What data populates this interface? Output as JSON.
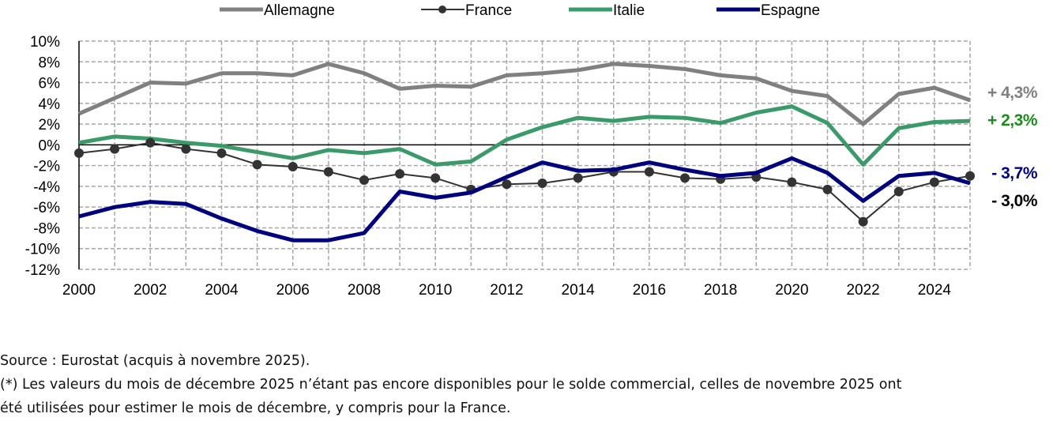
{
  "chart_data": {
    "type": "line",
    "title": "",
    "xlabel": "",
    "ylabel": "",
    "ylim": [
      -12,
      10
    ],
    "xlim": [
      2000,
      2025
    ],
    "yticks": [
      "10%",
      "8%",
      "6%",
      "4%",
      "2%",
      "0%",
      "-2%",
      "-4%",
      "-6%",
      "-8%",
      "-10%",
      "-12%"
    ],
    "xticks": [
      "2000",
      "2002",
      "2004",
      "2006",
      "2008",
      "2010",
      "2012",
      "2014",
      "2016",
      "2018",
      "2020",
      "2022",
      "2024"
    ],
    "grid": true,
    "legend_position": "top-center",
    "x": [
      2000,
      2001,
      2002,
      2003,
      2004,
      2005,
      2006,
      2007,
      2008,
      2009,
      2010,
      2011,
      2012,
      2013,
      2014,
      2015,
      2016,
      2017,
      2018,
      2019,
      2020,
      2021,
      2022,
      2023,
      2024,
      2025
    ],
    "series": [
      {
        "name": "Allemagne",
        "color": "#808080",
        "markers": false,
        "end_label": "+ 4,3%",
        "label_color": "#808080",
        "values": [
          3.0,
          4.5,
          6.0,
          5.9,
          6.9,
          6.9,
          6.7,
          7.8,
          6.9,
          5.4,
          5.7,
          5.6,
          6.7,
          6.9,
          7.2,
          7.8,
          7.6,
          7.3,
          6.7,
          6.4,
          5.2,
          4.7,
          2.0,
          4.9,
          5.5,
          4.3
        ]
      },
      {
        "name": "France",
        "color": "#333333",
        "markers": true,
        "end_label": "- 3,0%",
        "label_color": "#000000",
        "values": [
          -0.8,
          -0.4,
          0.2,
          -0.4,
          -0.8,
          -1.9,
          -2.1,
          -2.6,
          -3.4,
          -2.8,
          -3.2,
          -4.3,
          -3.8,
          -3.7,
          -3.2,
          -2.6,
          -2.6,
          -3.2,
          -3.3,
          -3.1,
          -3.6,
          -4.3,
          -7.4,
          -4.5,
          -3.6,
          -3.0
        ]
      },
      {
        "name": "Italie",
        "color": "#3a9a6a",
        "markers": false,
        "end_label": "+ 2,3%",
        "label_color": "#1e8a1e",
        "values": [
          0.2,
          0.8,
          0.6,
          0.2,
          -0.1,
          -0.7,
          -1.3,
          -0.5,
          -0.8,
          -0.4,
          -1.9,
          -1.6,
          0.5,
          1.7,
          2.6,
          2.3,
          2.7,
          2.6,
          2.1,
          3.1,
          3.7,
          2.1,
          -1.9,
          1.6,
          2.2,
          2.3
        ]
      },
      {
        "name": "Espagne",
        "color": "#00007f",
        "markers": false,
        "end_label": "- 3,7%",
        "label_color": "#00007f",
        "values": [
          -6.9,
          -6.0,
          -5.5,
          -5.7,
          -7.1,
          -8.3,
          -9.2,
          -9.2,
          -8.5,
          -4.5,
          -5.1,
          -4.6,
          -3.1,
          -1.7,
          -2.5,
          -2.4,
          -1.7,
          -2.4,
          -3.0,
          -2.7,
          -1.3,
          -2.7,
          -5.4,
          -3.0,
          -2.7,
          -3.7
        ]
      }
    ]
  },
  "notes": {
    "source": "Source : Eurostat (acquis à novembre 2025).",
    "footnote_1": "(*) Les valeurs du mois de décembre 2025 n’étant pas encore disponibles pour le solde commercial, celles de novembre 2025 ont",
    "footnote_2": "été utilisées pour estimer le mois de décembre, y compris pour la France."
  }
}
